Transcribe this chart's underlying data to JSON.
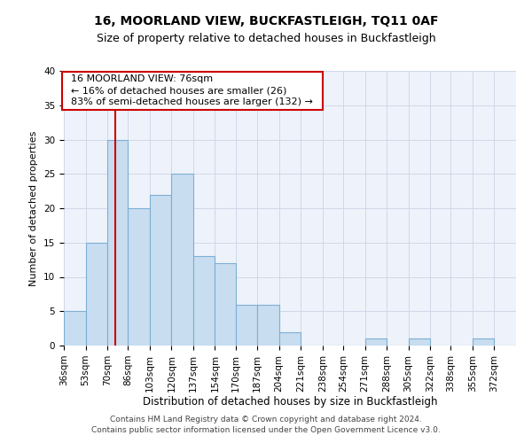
{
  "title1": "16, MOORLAND VIEW, BUCKFASTLEIGH, TQ11 0AF",
  "title2": "Size of property relative to detached houses in Buckfastleigh",
  "xlabel": "Distribution of detached houses by size in Buckfastleigh",
  "ylabel": "Number of detached properties",
  "footer1": "Contains HM Land Registry data © Crown copyright and database right 2024.",
  "footer2": "Contains public sector information licensed under the Open Government Licence v3.0.",
  "annotation_title": "16 MOORLAND VIEW: 76sqm",
  "annotation_line1": "← 16% of detached houses are smaller (26)",
  "annotation_line2": "83% of semi-detached houses are larger (132) →",
  "property_size": 76,
  "bar_categories": [
    "36sqm",
    "53sqm",
    "70sqm",
    "86sqm",
    "103sqm",
    "120sqm",
    "137sqm",
    "154sqm",
    "170sqm",
    "187sqm",
    "204sqm",
    "221sqm",
    "238sqm",
    "254sqm",
    "271sqm",
    "288sqm",
    "305sqm",
    "322sqm",
    "338sqm",
    "355sqm",
    "372sqm"
  ],
  "bar_values": [
    5,
    15,
    30,
    20,
    22,
    25,
    13,
    12,
    6,
    6,
    2,
    0,
    0,
    0,
    1,
    0,
    1,
    0,
    0,
    1,
    0
  ],
  "bin_edges": [
    36,
    53,
    70,
    86,
    103,
    120,
    137,
    154,
    170,
    187,
    204,
    221,
    238,
    254,
    271,
    288,
    305,
    322,
    338,
    355,
    372,
    389
  ],
  "bar_color": "#c9ddf0",
  "bar_edge_color": "#7bafd4",
  "vline_x": 76,
  "vline_color": "#cc0000",
  "bg_color": "#eef2fa",
  "grid_color": "#d0d8e8",
  "ylim": [
    0,
    40
  ],
  "yticks": [
    0,
    5,
    10,
    15,
    20,
    25,
    30,
    35,
    40
  ],
  "title1_fontsize": 10,
  "title2_fontsize": 9,
  "ylabel_fontsize": 8,
  "xlabel_fontsize": 8.5,
  "tick_fontsize": 7.5,
  "footer_fontsize": 6.5,
  "annot_fontsize": 8
}
